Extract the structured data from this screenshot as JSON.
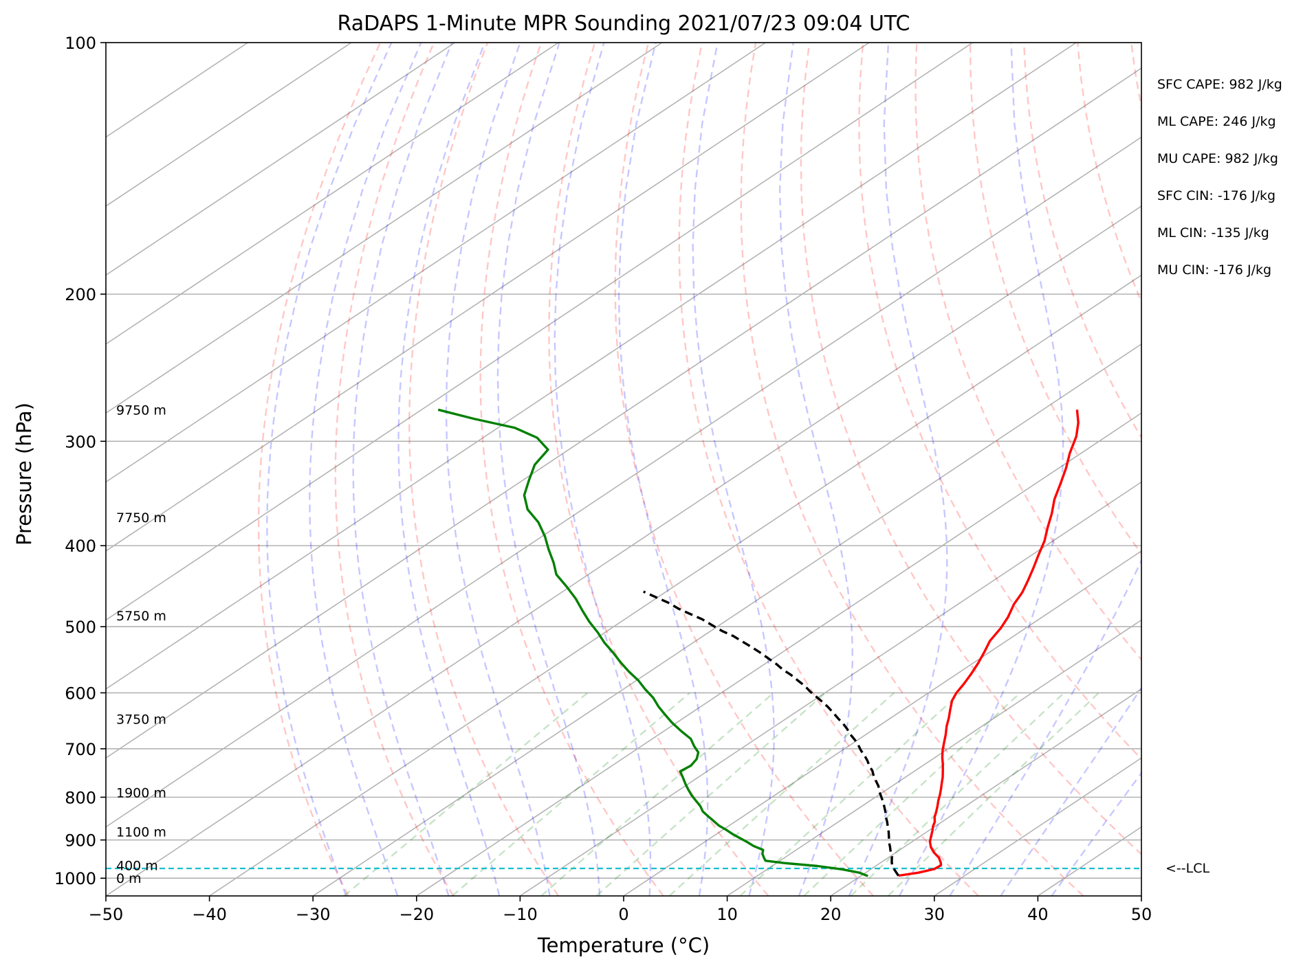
{
  "chart_data": {
    "type": "line",
    "subtype": "skew-t log-p sounding",
    "title": "RaDAPS 1-Minute MPR Sounding 2021/07/23 09:04 UTC",
    "xlabel": "Temperature (°C)",
    "ylabel": "Pressure (hPa)",
    "xlim": [
      -50,
      50
    ],
    "ylim": [
      1050,
      100
    ],
    "y_scale": "log",
    "x_ticks": [
      "−50",
      "−40",
      "−30",
      "−20",
      "−10",
      "0",
      "10",
      "20",
      "30",
      "40",
      "50"
    ],
    "y_ticks": [
      "100",
      "200",
      "300",
      "400",
      "500",
      "600",
      "700",
      "800",
      "900",
      "1000"
    ],
    "grid": true,
    "series": [
      {
        "role": "temperature",
        "color": "#ff0000",
        "points": [
          [
            23.6,
            993
          ],
          [
            25.1,
            985
          ],
          [
            26.1,
            975
          ],
          [
            26.2,
            965
          ],
          [
            25.8,
            958
          ],
          [
            24.9,
            945
          ],
          [
            23.7,
            932
          ],
          [
            22.6,
            918
          ],
          [
            21.7,
            904
          ],
          [
            21.0,
            890
          ],
          [
            20.4,
            878
          ],
          [
            19.8,
            867
          ],
          [
            19.3,
            856
          ],
          [
            18.6,
            845
          ],
          [
            18.0,
            833
          ],
          [
            17.3,
            820
          ],
          [
            16.6,
            808
          ],
          [
            15.9,
            795
          ],
          [
            15.2,
            783
          ],
          [
            14.4,
            770
          ],
          [
            13.6,
            757
          ],
          [
            12.7,
            744
          ],
          [
            11.7,
            730
          ],
          [
            10.7,
            717
          ],
          [
            9.7,
            703
          ],
          [
            8.7,
            688
          ],
          [
            7.7,
            673
          ],
          [
            6.6,
            658
          ],
          [
            5.6,
            643
          ],
          [
            4.5,
            628
          ],
          [
            3.4,
            613
          ],
          [
            2.7,
            600
          ],
          [
            2.1,
            585
          ],
          [
            1.4,
            570
          ],
          [
            0.5,
            553
          ],
          [
            -0.6,
            535
          ],
          [
            -1.6,
            520
          ],
          [
            -2.4,
            502
          ],
          [
            -3.3,
            487
          ],
          [
            -4.6,
            470
          ],
          [
            -5.5,
            455
          ],
          [
            -6.7,
            440
          ],
          [
            -8.0,
            425
          ],
          [
            -9.4,
            410
          ],
          [
            -10.8,
            395
          ],
          [
            -12.4,
            381
          ],
          [
            -14.1,
            366
          ],
          [
            -15.9,
            352
          ],
          [
            -17.6,
            337
          ],
          [
            -19.3,
            323
          ],
          [
            -21.1,
            310
          ],
          [
            -22.9,
            296
          ],
          [
            -24.7,
            285
          ],
          [
            -26.7,
            275
          ]
        ]
      },
      {
        "role": "dewpoint",
        "color": "#008000",
        "points": [
          [
            20.7,
            994
          ],
          [
            19.4,
            985
          ],
          [
            17.3,
            976
          ],
          [
            14.4,
            967
          ],
          [
            10.7,
            959
          ],
          [
            8.6,
            953
          ],
          [
            8.0,
            945
          ],
          [
            7.3,
            935
          ],
          [
            6.8,
            925
          ],
          [
            5.3,
            915
          ],
          [
            4.1,
            905
          ],
          [
            2.8,
            895
          ],
          [
            1.5,
            885
          ],
          [
            0.3,
            875
          ],
          [
            -1.0,
            865
          ],
          [
            -2.3,
            853
          ],
          [
            -3.4,
            843
          ],
          [
            -4.6,
            832
          ],
          [
            -5.6,
            820
          ],
          [
            -6.8,
            808
          ],
          [
            -8.0,
            796
          ],
          [
            -9.2,
            783
          ],
          [
            -10.2,
            772
          ],
          [
            -11.5,
            757
          ],
          [
            -12.6,
            745
          ],
          [
            -12.4,
            733
          ],
          [
            -12.8,
            720
          ],
          [
            -13.6,
            707
          ],
          [
            -14.9,
            695
          ],
          [
            -16.3,
            681
          ],
          [
            -18.3,
            667
          ],
          [
            -20.5,
            651
          ],
          [
            -22.3,
            637
          ],
          [
            -24.1,
            623
          ],
          [
            -25.9,
            608
          ],
          [
            -27.9,
            594
          ],
          [
            -29.8,
            580
          ],
          [
            -32.0,
            566
          ],
          [
            -34.1,
            552
          ],
          [
            -36.3,
            537
          ],
          [
            -38.5,
            523
          ],
          [
            -40.7,
            508
          ],
          [
            -43.1,
            493
          ],
          [
            -45.4,
            478
          ],
          [
            -47.7,
            463
          ],
          [
            -50.3,
            448
          ],
          [
            -53.1,
            433
          ],
          [
            -55.1,
            419
          ],
          [
            -57.5,
            404
          ],
          [
            -59.7,
            390
          ],
          [
            -62.4,
            375
          ],
          [
            -65.3,
            362
          ],
          [
            -67.7,
            348
          ],
          [
            -69.4,
            334
          ],
          [
            -71.1,
            320
          ],
          [
            -72.0,
            307
          ],
          [
            -74.8,
            297
          ],
          [
            -78.4,
            289
          ],
          [
            -83.6,
            282
          ],
          [
            -88.4,
            275
          ]
        ]
      },
      {
        "role": "parcel profile",
        "color": "#000000",
        "style": "dashed",
        "points": [
          [
            23.6,
            993
          ],
          [
            22.6,
            980
          ],
          [
            21.6,
            967
          ],
          [
            20.9,
            955
          ],
          [
            20.2,
            942
          ],
          [
            19.4,
            930
          ],
          [
            18.6,
            917
          ],
          [
            17.8,
            905
          ],
          [
            17.1,
            893
          ],
          [
            16.3,
            880
          ],
          [
            15.5,
            868
          ],
          [
            14.7,
            856
          ],
          [
            13.9,
            845
          ],
          [
            13.1,
            833
          ],
          [
            12.3,
            822
          ],
          [
            11.4,
            810
          ],
          [
            10.5,
            799
          ],
          [
            9.6,
            788
          ],
          [
            8.7,
            776
          ],
          [
            7.8,
            766
          ],
          [
            6.8,
            755
          ],
          [
            5.9,
            744
          ],
          [
            4.9,
            734
          ],
          [
            3.9,
            723
          ],
          [
            2.9,
            713
          ],
          [
            1.8,
            703
          ],
          [
            0.7,
            692
          ],
          [
            -0.3,
            683
          ],
          [
            -1.5,
            673
          ],
          [
            -2.6,
            663
          ],
          [
            -3.8,
            653
          ],
          [
            -5.0,
            644
          ],
          [
            -6.3,
            634
          ],
          [
            -7.5,
            625
          ],
          [
            -8.8,
            616
          ],
          [
            -10.2,
            607
          ],
          [
            -11.6,
            598
          ],
          [
            -12.9,
            589
          ],
          [
            -14.4,
            580
          ],
          [
            -15.9,
            571
          ],
          [
            -17.4,
            563
          ],
          [
            -18.9,
            554
          ],
          [
            -20.4,
            546
          ],
          [
            -22.1,
            537
          ],
          [
            -23.7,
            529
          ],
          [
            -25.4,
            521
          ],
          [
            -27.1,
            513
          ],
          [
            -28.9,
            506
          ],
          [
            -30.7,
            498
          ],
          [
            -32.5,
            490
          ],
          [
            -34.4,
            483
          ],
          [
            -36.3,
            476
          ],
          [
            -38.2,
            468
          ],
          [
            -40.2,
            461
          ],
          [
            -42.2,
            454
          ]
        ]
      }
    ],
    "lcl_marker": {
      "label": "<--LCL",
      "color": "#17becf"
    },
    "height_labels": [
      {
        "text": "9750 m",
        "pressure": 275
      },
      {
        "text": "7750 m",
        "pressure": 370
      },
      {
        "text": "5750 m",
        "pressure": 485
      },
      {
        "text": "3750 m",
        "pressure": 645
      },
      {
        "text": "1900 m",
        "pressure": 790
      },
      {
        "text": "1100 m",
        "pressure": 880
      },
      {
        "text": "400 m",
        "pressure": 965
      },
      {
        "text": "0 m",
        "pressure": 1000
      }
    ],
    "annotations": [
      "SFC CAPE: 982 J/kg",
      "ML CAPE: 246 J/kg",
      "MU CAPE: 982 J/kg",
      "SFC CIN: -176 J/kg",
      "ML CIN: -135 J/kg",
      "MU CIN: -176 J/kg"
    ]
  }
}
